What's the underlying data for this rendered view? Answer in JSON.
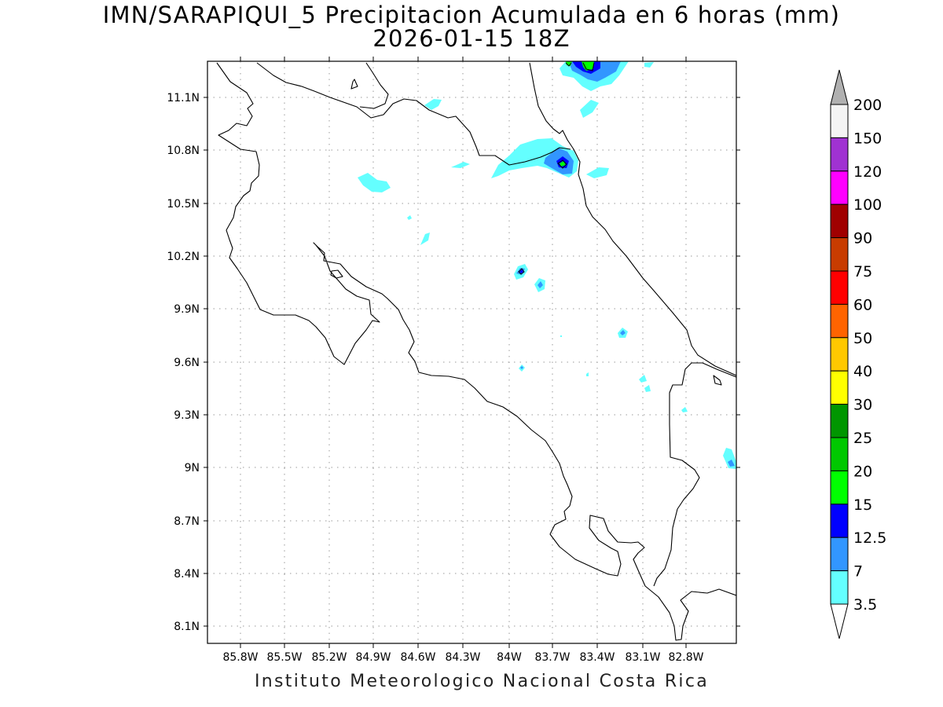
{
  "title": {
    "line1": "IMN/SARAPIQUI_5 Precipitacion Acumulada en 6 horas (mm)",
    "line2": "2026-01-15 18Z"
  },
  "credit": "Instituto Meteorologico Nacional Costa Rica",
  "map": {
    "lat_ticks": [
      "11.1N",
      "10.8N",
      "10.5N",
      "10.2N",
      "9.9N",
      "9.6N",
      "9.3N",
      "9N",
      "8.7N",
      "8.4N",
      "8.1N"
    ],
    "lon_ticks": [
      "85.8W",
      "85.5W",
      "85.2W",
      "84.9W",
      "84.6W",
      "84.3W",
      "84W",
      "83.7W",
      "83.4W",
      "83.1W",
      "82.8W"
    ],
    "gridlines": "dotted"
  },
  "legend": {
    "levels": [
      "200",
      "150",
      "120",
      "100",
      "90",
      "75",
      "60",
      "50",
      "40",
      "30",
      "25",
      "20",
      "15",
      "12.5",
      "7",
      "3.5"
    ],
    "colors": [
      "#f4f4f4",
      "#a032d2",
      "#ff00ff",
      "#a00000",
      "#c83c00",
      "#ff0000",
      "#ff6400",
      "#ffc800",
      "#ffff00",
      "#009600",
      "#00c800",
      "#00ff00",
      "#0000ff",
      "#3296ff",
      "#64ffff"
    ],
    "top_arrow_color": "#b0b0b0",
    "bottom_arrow_color": "#ffffff"
  }
}
